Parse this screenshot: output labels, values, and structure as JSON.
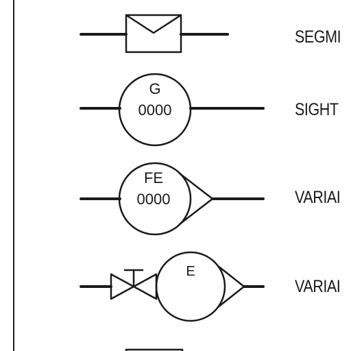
{
  "symbols": [
    {
      "id": "segmented",
      "label": "SEGMI",
      "tag": "",
      "number": ""
    },
    {
      "id": "sight-glass",
      "label": "SIGHT",
      "tag": "G",
      "number": "0000"
    },
    {
      "id": "variable-area",
      "label": "VARIAI",
      "tag": "FE",
      "number": "0000"
    },
    {
      "id": "variable-valve",
      "label": "VARIAI",
      "tag": "E",
      "number": ""
    },
    {
      "id": "bottom-partial",
      "label": "",
      "tag": "",
      "number": ""
    }
  ],
  "colors": {
    "ink": "#1a1a1a",
    "background": "#ffffff"
  }
}
